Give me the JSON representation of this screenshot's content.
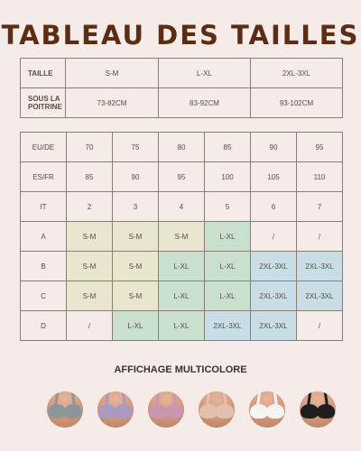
{
  "title": "TABLEAU DES TAILLES",
  "table1": {
    "rows": [
      {
        "label": "TAILLE",
        "cells": [
          "S-M",
          "L-XL",
          "2XL-3XL"
        ]
      },
      {
        "label": "SOUS LA POITRINE",
        "cells": [
          "73-82CM",
          "83-92CM",
          "93-102CM"
        ]
      }
    ]
  },
  "table2": {
    "rows": [
      {
        "label": "EU/DE",
        "cells": [
          "70",
          "75",
          "80",
          "85",
          "90",
          "95"
        ]
      },
      {
        "label": "ES/FR",
        "cells": [
          "85",
          "90",
          "95",
          "100",
          "105",
          "110"
        ]
      },
      {
        "label": "IT",
        "cells": [
          "2",
          "3",
          "4",
          "5",
          "6",
          "7"
        ]
      },
      {
        "label": "A",
        "cells": [
          "S-M",
          "S-M",
          "S-M",
          "L-XL",
          "/",
          "/"
        ]
      },
      {
        "label": "B",
        "cells": [
          "S-M",
          "S-M",
          "L-XL",
          "L-XL",
          "2XL-3XL",
          "2XL-3XL"
        ]
      },
      {
        "label": "C",
        "cells": [
          "S-M",
          "S-M",
          "L-XL",
          "L-XL",
          "2XL-3XL",
          "2XL-3XL"
        ]
      },
      {
        "label": "D",
        "cells": [
          "/",
          "L-XL",
          "L-XL",
          "2XL-3XL",
          "2XL-3XL",
          "/"
        ]
      }
    ],
    "colors": {
      "S-M": "#e9e6cf",
      "L-XL": "#c9e0cd",
      "2XL-3XL": "#c8dde5"
    }
  },
  "caption": "AFFICHAGE MULTICOLORE",
  "swatches": [
    {
      "name": "grey",
      "color": "#8e969a"
    },
    {
      "name": "lilac",
      "color": "#a99ac4"
    },
    {
      "name": "pink",
      "color": "#c996b0"
    },
    {
      "name": "nude",
      "color": "#e3bfb0"
    },
    {
      "name": "white",
      "color": "#f4f4f4"
    },
    {
      "name": "black",
      "color": "#1e1e1e"
    }
  ]
}
